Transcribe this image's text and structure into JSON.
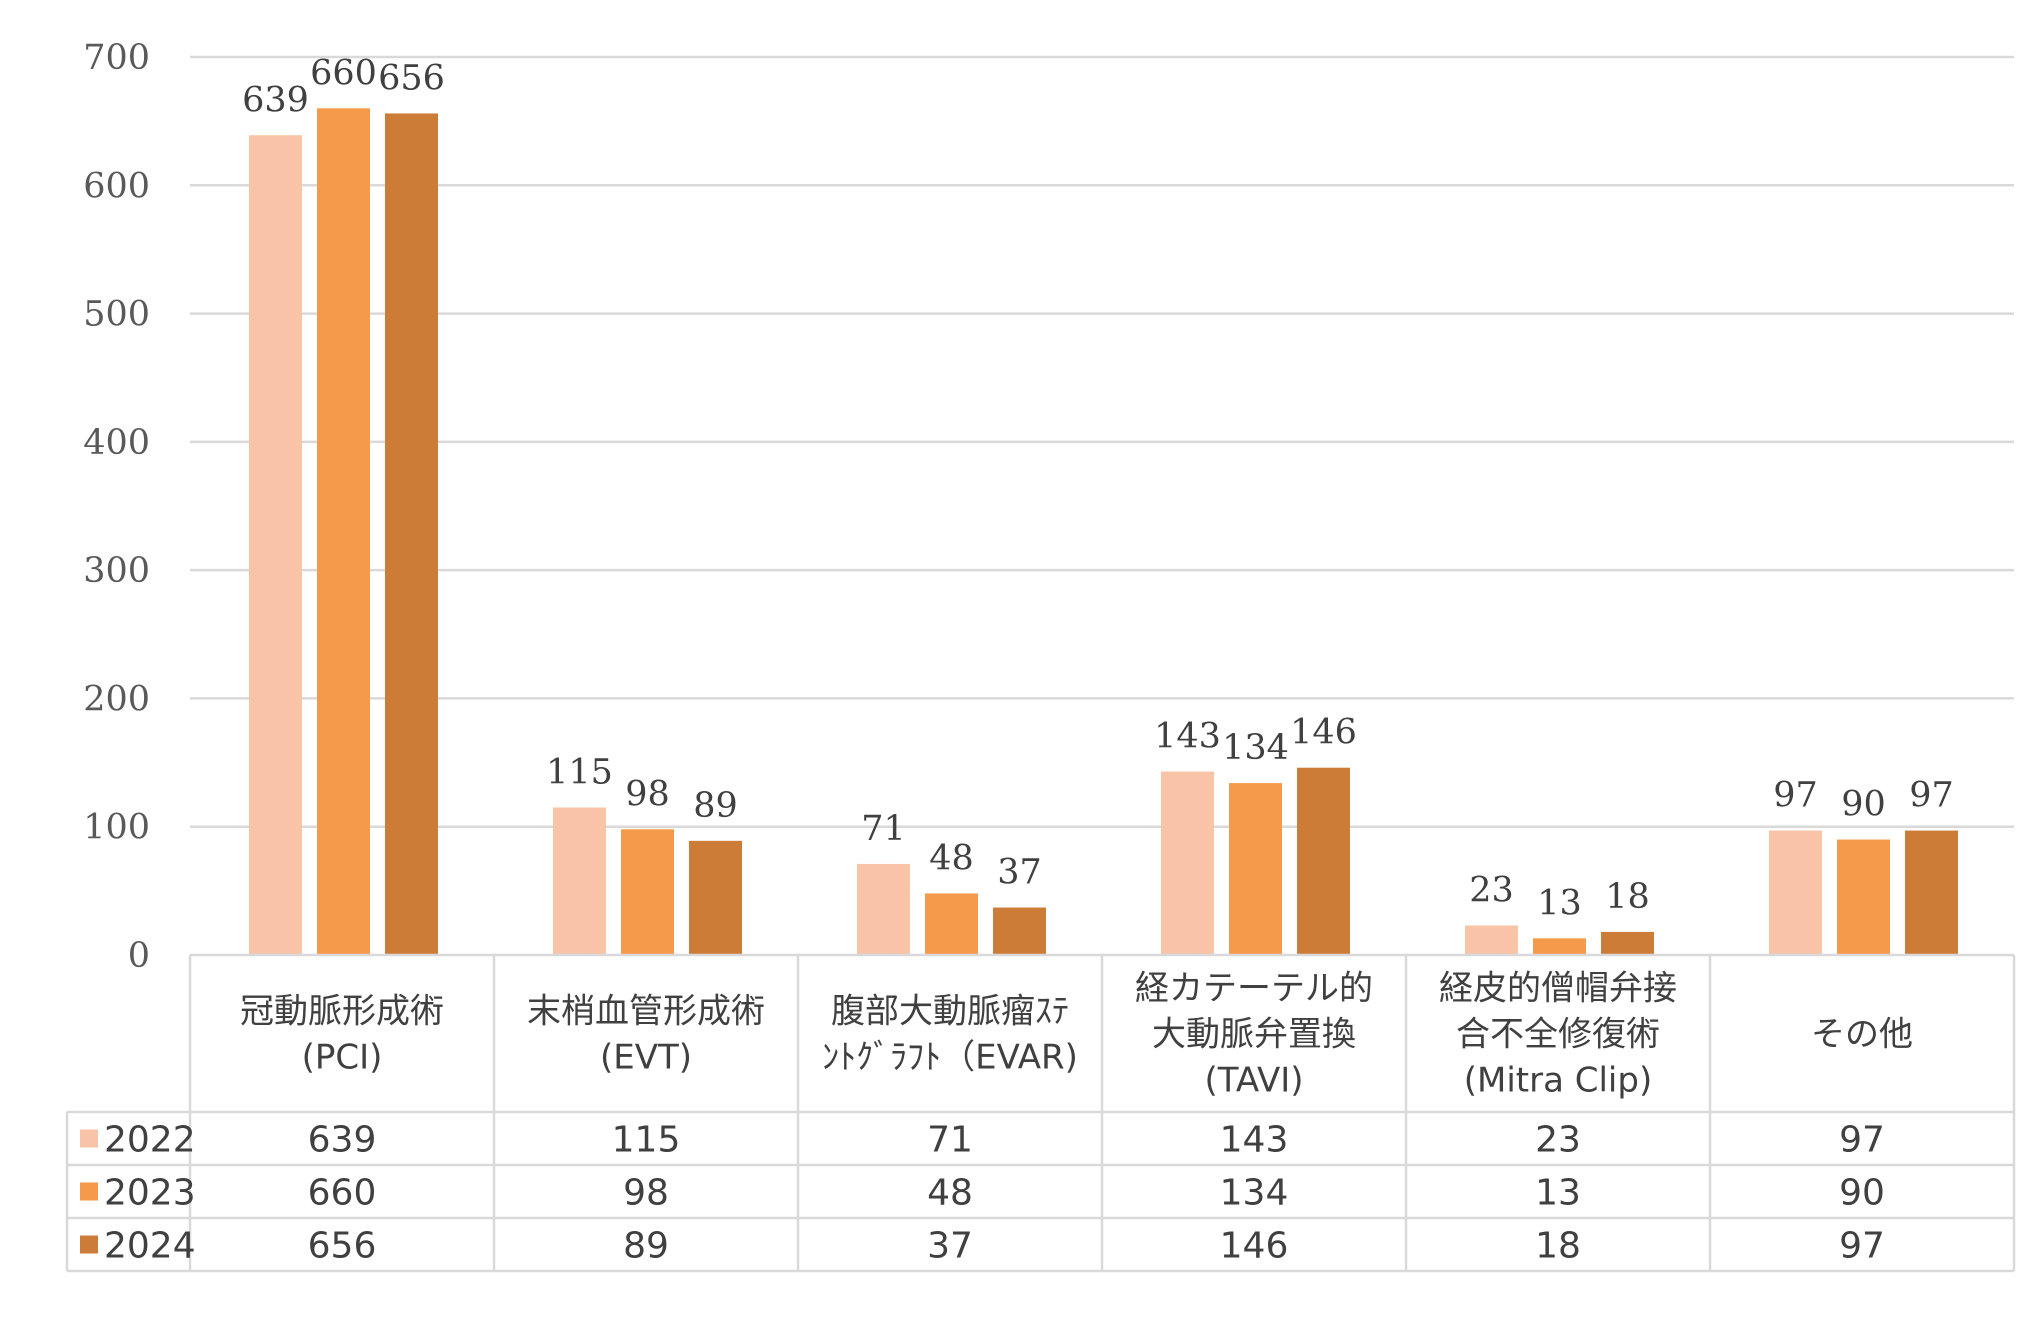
{
  "chart_data": {
    "type": "bar",
    "categories": [
      [
        "冠動脈形成術",
        "(PCI)"
      ],
      [
        "末梢血管形成術",
        "(EVT)"
      ],
      [
        "腹部大動脈瘤ｽﾃ",
        "ﾝﾄｸﾞﾗﾌﾄ（EVAR)"
      ],
      [
        "経カテーテル的",
        "大動脈弁置換",
        "(TAVI)"
      ],
      [
        "経皮的僧帽弁接",
        "合不全修復術",
        "(Mitra Clip)"
      ],
      [
        "その他"
      ]
    ],
    "series": [
      {
        "name": "2022",
        "color": "#F8C3A6",
        "values": [
          639,
          115,
          71,
          143,
          23,
          97
        ]
      },
      {
        "name": "2023",
        "color": "#F5994A",
        "values": [
          660,
          98,
          48,
          134,
          13,
          90
        ]
      },
      {
        "name": "2024",
        "color": "#CD7C38",
        "values": [
          656,
          89,
          37,
          146,
          18,
          97
        ]
      }
    ],
    "yticks": [
      "0",
      "100",
      "200",
      "300",
      "400",
      "500",
      "600",
      "700"
    ],
    "ylim": [
      0,
      700
    ],
    "grid": true,
    "data_table": true,
    "title": "",
    "xlabel": "",
    "ylabel": ""
  }
}
